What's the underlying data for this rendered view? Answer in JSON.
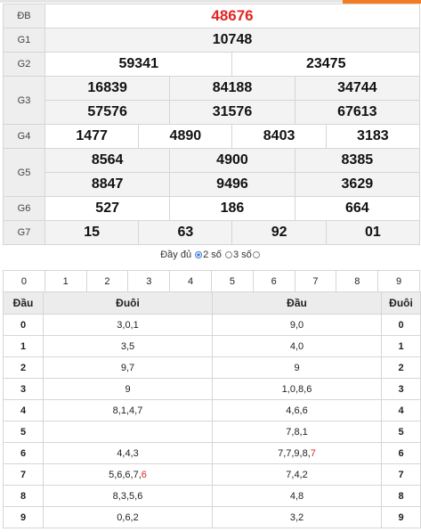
{
  "results": {
    "db": {
      "label": "ĐB",
      "values": [
        "48676"
      ]
    },
    "g1": {
      "label": "G1",
      "values": [
        "10748"
      ]
    },
    "g2": {
      "label": "G2",
      "values": [
        "59341",
        "23475"
      ]
    },
    "g3": {
      "label": "G3",
      "values": [
        "16839",
        "84188",
        "34744",
        "57576",
        "31576",
        "67613"
      ]
    },
    "g4": {
      "label": "G4",
      "values": [
        "1477",
        "4890",
        "8403",
        "3183"
      ]
    },
    "g5": {
      "label": "G5",
      "values": [
        "8564",
        "4900",
        "8385",
        "8847",
        "9496",
        "3629"
      ]
    },
    "g6": {
      "label": "G6",
      "values": [
        "527",
        "186",
        "664"
      ]
    },
    "g7": {
      "label": "G7",
      "values": [
        "15",
        "63",
        "92",
        "01"
      ]
    }
  },
  "options": {
    "prefix": "Đầy đủ",
    "two_digits": "2 số",
    "three_digits": "3 số"
  },
  "digits": [
    "0",
    "1",
    "2",
    "3",
    "4",
    "5",
    "6",
    "7",
    "8",
    "9"
  ],
  "loto": {
    "headers": [
      "Đầu",
      "Đuôi",
      "Đầu",
      "Đuôi"
    ],
    "rows": [
      {
        "key": "0",
        "tails": "3,0,1",
        "heads": "9,0",
        "key2": "0"
      },
      {
        "key": "1",
        "tails": "3,5",
        "heads": "4,0",
        "key2": "1"
      },
      {
        "key": "2",
        "tails": "9,7",
        "heads": "9",
        "key2": "2"
      },
      {
        "key": "3",
        "tails": "9",
        "heads": "1,0,8,6",
        "key2": "3"
      },
      {
        "key": "4",
        "tails": "8,1,4,7",
        "heads": "4,6,6",
        "key2": "4"
      },
      {
        "key": "5",
        "tails": "",
        "heads": "7,8,1",
        "key2": "5"
      },
      {
        "key": "6",
        "tails": "4,4,3",
        "heads": "7,7,9,8,",
        "heads_hl": "7",
        "key2": "6"
      },
      {
        "key": "7",
        "tails": "5,6,6,7,",
        "tails_hl": "6",
        "heads": "7,4,2",
        "key2": "7"
      },
      {
        "key": "8",
        "tails": "8,3,5,6",
        "heads": "4,8",
        "key2": "8"
      },
      {
        "key": "9",
        "tails": "0,6,2",
        "heads": "3,2",
        "key2": "9"
      }
    ]
  },
  "colors": {
    "special_prize": "#e02424",
    "accent": "#f47c20"
  }
}
